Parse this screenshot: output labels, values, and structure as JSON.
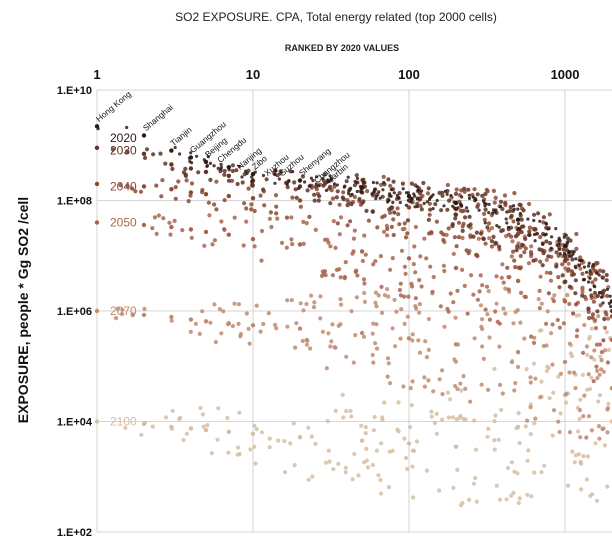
{
  "chart_data": {
    "type": "scatter",
    "title": "SO2 EXPOSURE. CPA, Total energy related (top 2000 cells)",
    "subtitle": "RANKED BY 2020 VALUES",
    "xlabel": "",
    "ylabel": "EXPOSURE, people * Gg SO2 /cell",
    "xscale": "log",
    "yscale": "log",
    "xlim": [
      1,
      2000
    ],
    "ylim": [
      100,
      10000000000
    ],
    "x_ticks": [
      {
        "value": 1,
        "label": "1"
      },
      {
        "value": 10,
        "label": "10"
      },
      {
        "value": 100,
        "label": "100"
      },
      {
        "value": 1000,
        "label": "1000"
      }
    ],
    "y_ticks": [
      {
        "value": 10000000000,
        "label": "1.E+10"
      },
      {
        "value": 100000000,
        "label": "1.E+08"
      },
      {
        "value": 1000000,
        "label": "1.E+06"
      },
      {
        "value": 10000,
        "label": "1.E+04"
      },
      {
        "value": 100,
        "label": "1.E+02"
      }
    ],
    "grid": true,
    "legend": "none",
    "series": [
      {
        "name": "2020",
        "color": "#2e1a14",
        "label_value": 4000000000,
        "values": [
          [
            1,
            2200000000
          ],
          [
            2,
            1500000000
          ],
          [
            3,
            800000000
          ],
          [
            4,
            600000000
          ],
          [
            5,
            500000000
          ],
          [
            7,
            400000000
          ],
          [
            10,
            300000000
          ],
          [
            20,
            230000000
          ],
          [
            50,
            170000000
          ],
          [
            100,
            120000000
          ],
          [
            200,
            90000000
          ],
          [
            500,
            45000000
          ],
          [
            1000,
            15000000
          ],
          [
            2000,
            1500000
          ]
        ]
      },
      {
        "name": "2030",
        "color": "#5e3325",
        "label_value": 800000000,
        "values": [
          [
            1,
            900000000
          ],
          [
            2,
            700000000
          ],
          [
            3,
            450000000
          ],
          [
            4,
            380000000
          ],
          [
            5,
            330000000
          ],
          [
            7,
            280000000
          ],
          [
            10,
            230000000
          ],
          [
            20,
            180000000
          ],
          [
            50,
            140000000
          ],
          [
            100,
            100000000
          ],
          [
            200,
            70000000
          ],
          [
            500,
            30000000
          ],
          [
            1000,
            10000000
          ],
          [
            2000,
            1000000
          ]
        ]
      },
      {
        "name": "2040",
        "color": "#8a4a34",
        "label_value": 180000000,
        "values": [
          [
            1,
            200000000
          ],
          [
            2,
            180000000
          ],
          [
            3,
            160000000
          ],
          [
            4,
            140000000
          ],
          [
            5,
            130000000
          ],
          [
            7,
            120000000
          ],
          [
            10,
            110000000
          ],
          [
            20,
            100000000
          ],
          [
            50,
            90000000
          ],
          [
            100,
            75000000
          ],
          [
            200,
            55000000
          ],
          [
            500,
            25000000
          ],
          [
            1000,
            8000000
          ],
          [
            2000,
            800000
          ]
        ]
      },
      {
        "name": "2050",
        "color": "#a9654c",
        "label_value": 40000000,
        "values": [
          [
            1,
            40000000
          ],
          [
            2,
            36000000
          ],
          [
            3,
            33000000
          ],
          [
            4,
            30000000
          ],
          [
            5,
            27000000
          ],
          [
            7,
            24000000
          ],
          [
            10,
            20000000
          ],
          [
            20,
            16000000
          ],
          [
            50,
            12000000
          ],
          [
            100,
            9000000
          ],
          [
            200,
            6000000
          ],
          [
            500,
            3500000
          ],
          [
            1000,
            1500000
          ],
          [
            2000,
            300000
          ]
        ]
      },
      {
        "name": "2070",
        "color": "#c18a70",
        "label_value": 1000000,
        "values": [
          [
            1,
            1000000
          ],
          [
            2,
            850000
          ],
          [
            3,
            780000
          ],
          [
            4,
            700000
          ],
          [
            5,
            650000
          ],
          [
            7,
            600000
          ],
          [
            10,
            550000
          ],
          [
            20,
            480000
          ],
          [
            50,
            400000
          ],
          [
            100,
            320000
          ],
          [
            200,
            250000
          ],
          [
            500,
            180000
          ],
          [
            1000,
            120000
          ],
          [
            2000,
            40000
          ]
        ]
      },
      {
        "name": "2100",
        "color": "#d6bea3",
        "label_value": 10000,
        "values": [
          [
            1,
            10000
          ],
          [
            2,
            9000
          ],
          [
            3,
            8000
          ],
          [
            4,
            7500
          ],
          [
            5,
            7000
          ],
          [
            7,
            6500
          ],
          [
            10,
            6000
          ],
          [
            20,
            5200
          ],
          [
            50,
            4500
          ],
          [
            100,
            4000
          ],
          [
            200,
            3500
          ],
          [
            500,
            8000
          ],
          [
            1000,
            30000
          ],
          [
            2000,
            10000
          ]
        ]
      }
    ],
    "cities": [
      {
        "name": "Hong Kong",
        "rank": 1
      },
      {
        "name": "Shanghai",
        "rank": 2
      },
      {
        "name": "Tianjin",
        "rank": 3
      },
      {
        "name": "Guangzhou",
        "rank": 4
      },
      {
        "name": "Beijing",
        "rank": 5
      },
      {
        "name": "Chengdu",
        "rank": 6
      },
      {
        "name": "Nanjing",
        "rank": 8
      },
      {
        "name": "Zibo",
        "rank": 10
      },
      {
        "name": "Xuzhou",
        "rank": 12
      },
      {
        "name": "Suzhou",
        "rank": 15
      },
      {
        "name": "Shenyang",
        "rank": 20
      },
      {
        "name": "Changzhou",
        "rank": 25
      },
      {
        "name": "Harbin",
        "rank": 30
      }
    ]
  }
}
